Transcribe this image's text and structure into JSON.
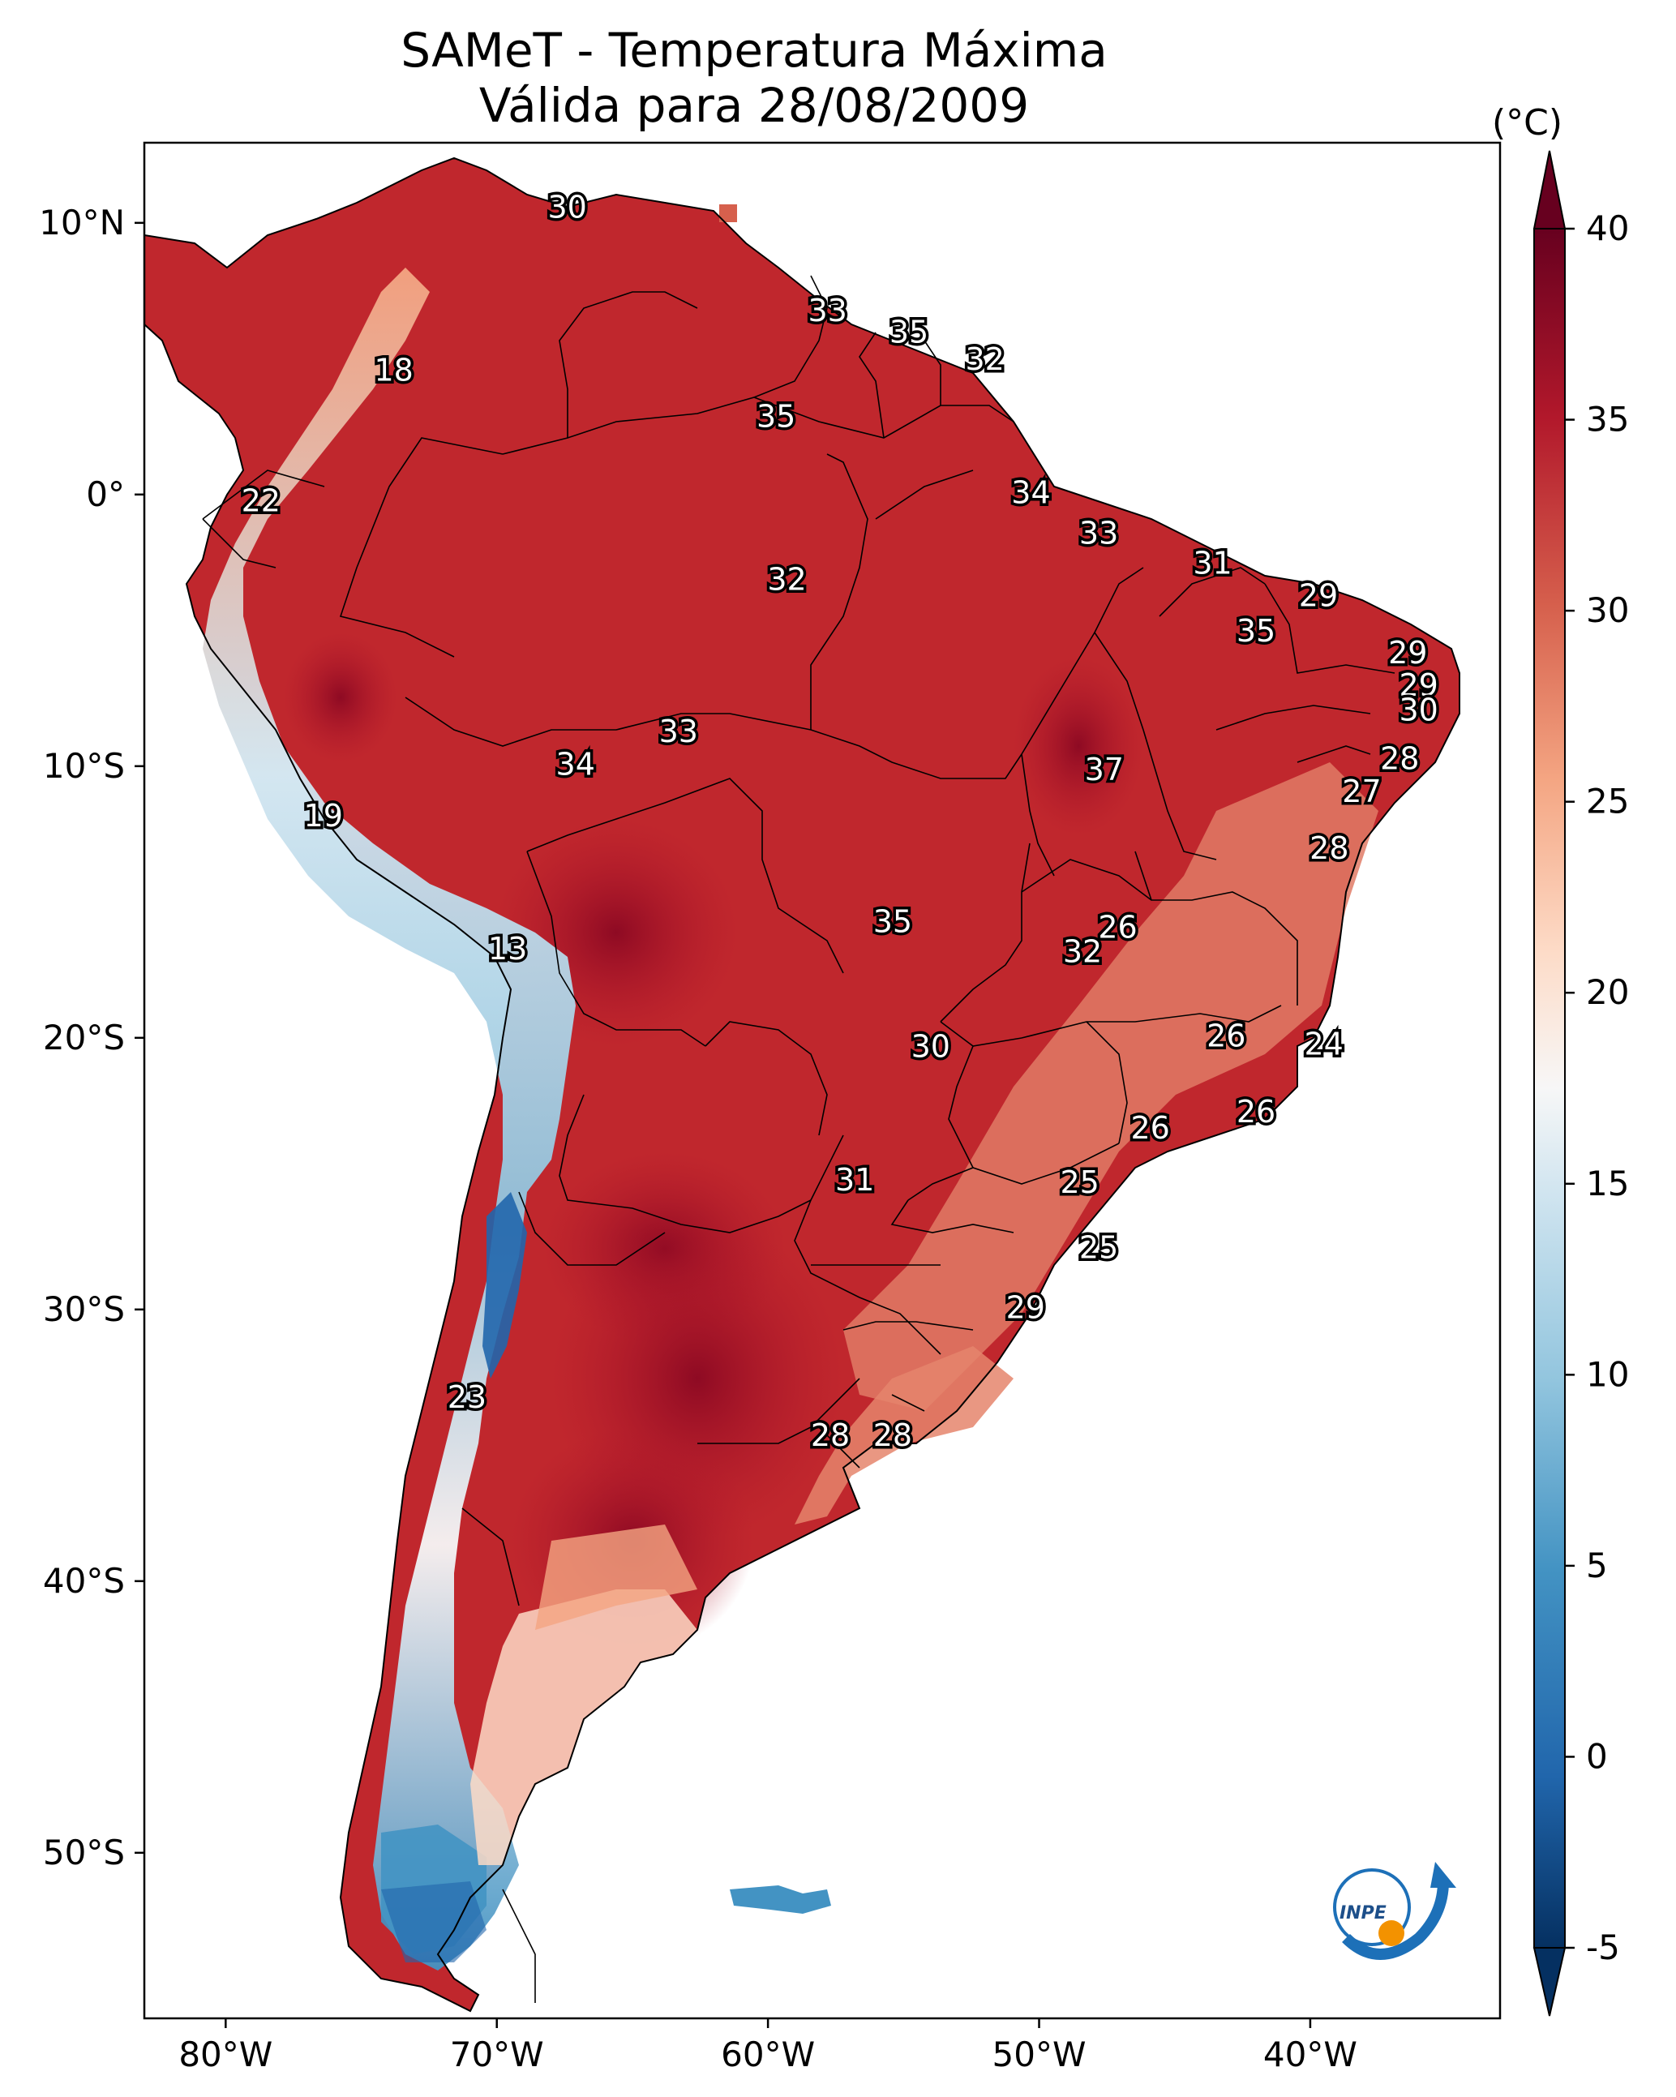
{
  "title": {
    "line1": "SAMeT - Temperatura Máxima",
    "line2": "Válida para 28/08/2009"
  },
  "axes": {
    "lat_ticks": [
      "10°N",
      "0°",
      "10°S",
      "20°S",
      "30°S",
      "40°S",
      "50°S"
    ],
    "lon_ticks": [
      "80°W",
      "70°W",
      "60°W",
      "50°W",
      "40°W"
    ]
  },
  "colorbar": {
    "unit": "(°C)",
    "ticks": [
      "40",
      "35",
      "30",
      "25",
      "20",
      "15",
      "10",
      "5",
      "0",
      "-5"
    ],
    "range": [
      -5,
      40
    ]
  },
  "contour_labels": [
    {
      "text": "30",
      "lon": -67.4,
      "lat": 10.5
    },
    {
      "text": "33",
      "lon": -57.8,
      "lat": 6.7
    },
    {
      "text": "35",
      "lon": -54.8,
      "lat": 5.9
    },
    {
      "text": "32",
      "lon": -52.0,
      "lat": 4.9
    },
    {
      "text": "18",
      "lon": -73.8,
      "lat": 4.5
    },
    {
      "text": "35",
      "lon": -59.7,
      "lat": 2.8
    },
    {
      "text": "34",
      "lon": -50.3,
      "lat": 0.0
    },
    {
      "text": "22",
      "lon": -78.7,
      "lat": -0.3
    },
    {
      "text": "33",
      "lon": -47.8,
      "lat": -1.5
    },
    {
      "text": "31",
      "lon": -43.6,
      "lat": -2.6
    },
    {
      "text": "32",
      "lon": -59.3,
      "lat": -3.2
    },
    {
      "text": "29",
      "lon": -39.7,
      "lat": -3.8
    },
    {
      "text": "35",
      "lon": -42.0,
      "lat": -5.1
    },
    {
      "text": "29",
      "lon": -36.4,
      "lat": -5.9
    },
    {
      "text": "29",
      "lon": -36.0,
      "lat": -7.1
    },
    {
      "text": "30",
      "lon": -36.0,
      "lat": -8.0
    },
    {
      "text": "33",
      "lon": -63.3,
      "lat": -8.8
    },
    {
      "text": "28",
      "lon": -36.7,
      "lat": -9.8
    },
    {
      "text": "34",
      "lon": -67.1,
      "lat": -10.0
    },
    {
      "text": "37",
      "lon": -47.6,
      "lat": -10.2
    },
    {
      "text": "27",
      "lon": -38.1,
      "lat": -11.0
    },
    {
      "text": "19",
      "lon": -76.4,
      "lat": -11.9
    },
    {
      "text": "28",
      "lon": -39.3,
      "lat": -13.1
    },
    {
      "text": "35",
      "lon": -55.4,
      "lat": -15.8
    },
    {
      "text": "26",
      "lon": -47.1,
      "lat": -16.0
    },
    {
      "text": "32",
      "lon": -48.4,
      "lat": -16.9
    },
    {
      "text": "13",
      "lon": -69.6,
      "lat": -16.8
    },
    {
      "text": "26",
      "lon": -43.1,
      "lat": -20.0
    },
    {
      "text": "24",
      "lon": -39.5,
      "lat": -20.3
    },
    {
      "text": "30",
      "lon": -54.0,
      "lat": -20.4
    },
    {
      "text": "26",
      "lon": -42.0,
      "lat": -22.8
    },
    {
      "text": "26",
      "lon": -45.9,
      "lat": -23.4
    },
    {
      "text": "31",
      "lon": -56.8,
      "lat": -25.3
    },
    {
      "text": "25",
      "lon": -48.5,
      "lat": -25.4
    },
    {
      "text": "25",
      "lon": -47.8,
      "lat": -27.8
    },
    {
      "text": "29",
      "lon": -50.5,
      "lat": -30.0
    },
    {
      "text": "23",
      "lon": -71.1,
      "lat": -33.3
    },
    {
      "text": "28",
      "lon": -57.7,
      "lat": -34.7
    },
    {
      "text": "28",
      "lon": -55.4,
      "lat": -34.7
    }
  ],
  "logo": {
    "text": "INPE"
  }
}
